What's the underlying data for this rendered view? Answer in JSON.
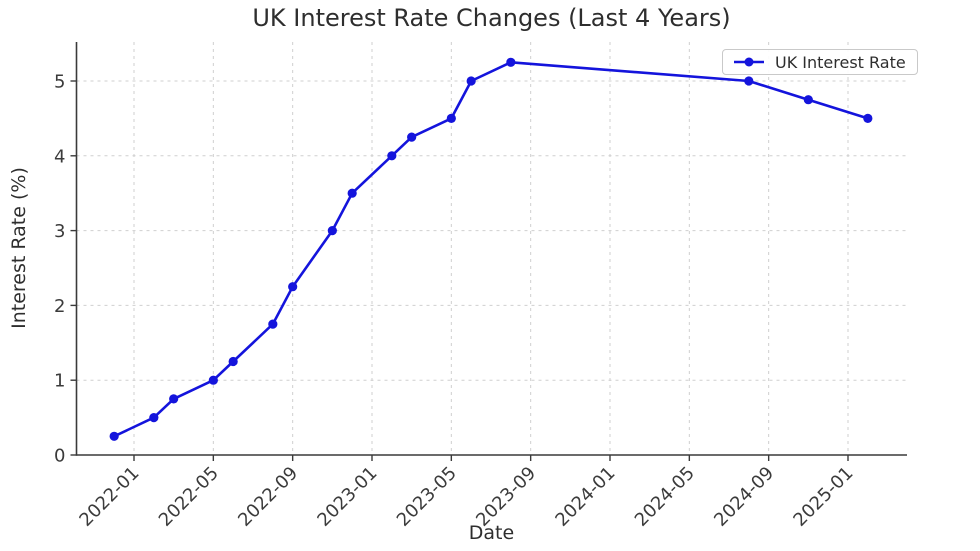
{
  "chart_data": {
    "type": "line",
    "title": "UK Interest Rate Changes (Last 4 Years)",
    "xlabel": "Date",
    "ylabel": "Interest Rate (%)",
    "legend": {
      "position": "upper right",
      "entries": [
        "UK Interest Rate"
      ]
    },
    "series": [
      {
        "name": "UK Interest Rate",
        "marker": "circle",
        "points": [
          {
            "date": "2021-12",
            "value": 0.25
          },
          {
            "date": "2022-02",
            "value": 0.5
          },
          {
            "date": "2022-03",
            "value": 0.75
          },
          {
            "date": "2022-05",
            "value": 1.0
          },
          {
            "date": "2022-06",
            "value": 1.25
          },
          {
            "date": "2022-08",
            "value": 1.75
          },
          {
            "date": "2022-09",
            "value": 2.25
          },
          {
            "date": "2022-11",
            "value": 3.0
          },
          {
            "date": "2022-12",
            "value": 3.5
          },
          {
            "date": "2023-02",
            "value": 4.0
          },
          {
            "date": "2023-03",
            "value": 4.25
          },
          {
            "date": "2023-05",
            "value": 4.5
          },
          {
            "date": "2023-06",
            "value": 5.0
          },
          {
            "date": "2023-08",
            "value": 5.25
          },
          {
            "date": "2024-08",
            "value": 5.0
          },
          {
            "date": "2024-11",
            "value": 4.75
          },
          {
            "date": "2025-02",
            "value": 4.5
          }
        ]
      }
    ],
    "x_ticks": [
      "2022-01",
      "2022-05",
      "2022-09",
      "2023-01",
      "2023-05",
      "2023-09",
      "2024-01",
      "2024-05",
      "2024-09",
      "2025-01"
    ],
    "y_ticks": [
      0,
      1,
      2,
      3,
      4,
      5
    ],
    "ylim": [
      0,
      5.52
    ],
    "xlim": [
      "2021-10",
      "2025-04"
    ],
    "x_tick_rotation": 45,
    "grid": {
      "visible": true,
      "linestyle": "dashed"
    }
  },
  "colors": {
    "line": "#1414dc",
    "grid": "#cfcfcf",
    "axis": "#3a3a3a",
    "title_text": "#2e2e2e",
    "tick_text": "#3b3b3b",
    "background": "#ffffff",
    "legend_border": "#c9c9c9"
  }
}
